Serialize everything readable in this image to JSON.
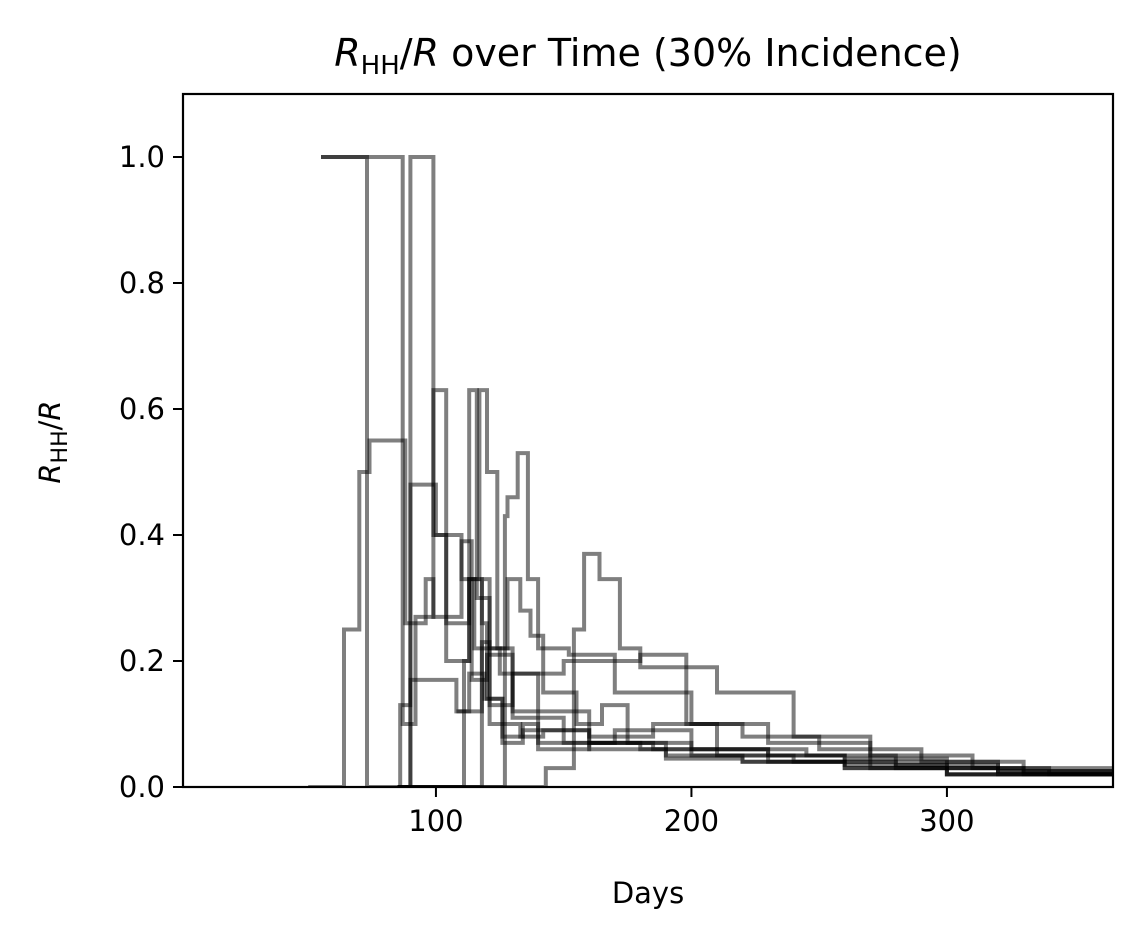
{
  "chart_data": {
    "type": "line",
    "title_parts": {
      "sym": "R",
      "sub": "HH",
      "slash": "/",
      "sym2": "R",
      "rest": " over Time (30% Incidence)"
    },
    "xlabel": "Days",
    "ylabel_parts": {
      "sym": "R",
      "sub": "HH",
      "slash": "/",
      "sym2": "R"
    },
    "xlim": [
      1,
      365
    ],
    "ylim": [
      0,
      1.1
    ],
    "x_ticks": [
      100,
      200,
      300
    ],
    "x_tick_labels": [
      "100",
      "200",
      "300"
    ],
    "y_ticks": [
      0,
      0.2,
      0.4,
      0.6,
      0.8,
      1.0
    ],
    "y_tick_labels": [
      "0.0",
      "0.2",
      "0.4",
      "0.6",
      "0.8",
      "1.0"
    ],
    "grid": false,
    "legend": "none",
    "line_color": "#000000",
    "line_opacity": 0.5,
    "series": [
      {
        "x": [
          50,
          64,
          64,
          70,
          70,
          74,
          74,
          88,
          88,
          96,
          96,
          99,
          99,
          110,
          110,
          114,
          114,
          120,
          120,
          130,
          130,
          150,
          150,
          170,
          170,
          200,
          200,
          230,
          230,
          260,
          260,
          300,
          300,
          340,
          340,
          365
        ],
        "y": [
          0,
          0,
          0.25,
          0.25,
          0.5,
          0.5,
          0.55,
          0.55,
          0.26,
          0.26,
          0.33,
          0.33,
          0.27,
          0.27,
          0.39,
          0.39,
          0.17,
          0.17,
          0.21,
          0.21,
          0.11,
          0.11,
          0.07,
          0.07,
          0.09,
          0.09,
          0.06,
          0.06,
          0.05,
          0.05,
          0.045,
          0.045,
          0.03,
          0.03,
          0.02,
          0.02
        ]
      },
      {
        "x": [
          55,
          73,
          73,
          86,
          86,
          90,
          90,
          100,
          100,
          110,
          110,
          115,
          115,
          125,
          125,
          140,
          140,
          160,
          160,
          185,
          185,
          210,
          210,
          245,
          245,
          280,
          280,
          320,
          320,
          365
        ],
        "y": [
          1.0,
          1.0,
          0.0,
          0.0,
          0.13,
          0.13,
          0.48,
          0.48,
          0.4,
          0.4,
          0.33,
          0.33,
          0.22,
          0.22,
          0.18,
          0.18,
          0.12,
          0.12,
          0.08,
          0.08,
          0.1,
          0.1,
          0.06,
          0.06,
          0.05,
          0.05,
          0.035,
          0.035,
          0.025,
          0.025
        ]
      },
      {
        "x": [
          55,
          87,
          87,
          92,
          92,
          99,
          99,
          104,
          104,
          113,
          113,
          116,
          116,
          121,
          121,
          133,
          133,
          142,
          142,
          160,
          160,
          180,
          180,
          200,
          200,
          230,
          230,
          270,
          270,
          320,
          320,
          365
        ],
        "y": [
          1.0,
          1.0,
          0.1,
          0.1,
          0.27,
          0.27,
          0.63,
          0.63,
          0.2,
          0.2,
          0.63,
          0.63,
          0.3,
          0.3,
          0.1,
          0.1,
          0.08,
          0.08,
          0.09,
          0.09,
          0.07,
          0.07,
          0.06,
          0.06,
          0.05,
          0.05,
          0.04,
          0.04,
          0.03,
          0.03,
          0.02,
          0.02
        ]
      },
      {
        "x": [
          88,
          90,
          90,
          99,
          99,
          104,
          104,
          113,
          113,
          117,
          117,
          120,
          120,
          124,
          124,
          130,
          130,
          140,
          140,
          160,
          160,
          185,
          185,
          210,
          210,
          240,
          240,
          280,
          280,
          330,
          330,
          365
        ],
        "y": [
          0.0,
          0.0,
          1.0,
          1.0,
          0.4,
          0.4,
          0.26,
          0.26,
          0.33,
          0.33,
          0.63,
          0.63,
          0.5,
          0.5,
          0.22,
          0.22,
          0.12,
          0.12,
          0.09,
          0.09,
          0.07,
          0.07,
          0.06,
          0.06,
          0.05,
          0.05,
          0.04,
          0.04,
          0.03,
          0.03,
          0.02,
          0.02
        ]
      },
      {
        "x": [
          85,
          90,
          90,
          100,
          100,
          108,
          108,
          113,
          113,
          119,
          119,
          126,
          126,
          134,
          134,
          140,
          140,
          160,
          160,
          190,
          190,
          220,
          220,
          260,
          260,
          300,
          300,
          365
        ],
        "y": [
          0.0,
          0.0,
          0.17,
          0.17,
          0.17,
          0.17,
          0.12,
          0.12,
          0.18,
          0.18,
          0.14,
          0.14,
          0.07,
          0.07,
          0.09,
          0.09,
          0.06,
          0.06,
          0.07,
          0.07,
          0.05,
          0.05,
          0.04,
          0.04,
          0.03,
          0.03,
          0.02,
          0.02
        ]
      },
      {
        "x": [
          85,
          111,
          111,
          113,
          113,
          118,
          118,
          120,
          120,
          126,
          126,
          134,
          134,
          140,
          140,
          160,
          160,
          190,
          190,
          220,
          220,
          260,
          260,
          300,
          300,
          365
        ],
        "y": [
          0.0,
          0.0,
          0.2,
          0.2,
          0.33,
          0.33,
          0.26,
          0.26,
          0.14,
          0.14,
          0.08,
          0.08,
          0.1,
          0.1,
          0.07,
          0.07,
          0.06,
          0.06,
          0.045,
          0.045,
          0.04,
          0.04,
          0.03,
          0.03,
          0.02,
          0.02
        ]
      },
      {
        "x": [
          85,
          118,
          118,
          121,
          121,
          128,
          128,
          133,
          133,
          137,
          137,
          142,
          142,
          155,
          155,
          165,
          165,
          175,
          175,
          200,
          200,
          230,
          230,
          260,
          260,
          300,
          300,
          365
        ],
        "y": [
          0.0,
          0.0,
          0.33,
          0.33,
          0.22,
          0.22,
          0.33,
          0.33,
          0.28,
          0.28,
          0.24,
          0.24,
          0.15,
          0.15,
          0.1,
          0.1,
          0.13,
          0.13,
          0.07,
          0.07,
          0.06,
          0.06,
          0.05,
          0.05,
          0.035,
          0.035,
          0.02,
          0.02
        ]
      },
      {
        "x": [
          85,
          127,
          127,
          128,
          128,
          132,
          132,
          136,
          136,
          140,
          140,
          152,
          152,
          170,
          170,
          200,
          200,
          230,
          230,
          270,
          270,
          320,
          320,
          365
        ],
        "y": [
          0.0,
          0.0,
          0.43,
          0.43,
          0.46,
          0.46,
          0.53,
          0.53,
          0.33,
          0.33,
          0.22,
          0.22,
          0.21,
          0.21,
          0.15,
          0.15,
          0.1,
          0.1,
          0.07,
          0.07,
          0.04,
          0.04,
          0.025,
          0.025
        ]
      },
      {
        "x": [
          85,
          139,
          139,
          143,
          143,
          154,
          154,
          158,
          158,
          164,
          164,
          172,
          172,
          180,
          180,
          210,
          210,
          240,
          240,
          270,
          270,
          310,
          310,
          365
        ],
        "y": [
          0.0,
          0.0,
          0.0,
          0.0,
          0.03,
          0.03,
          0.25,
          0.25,
          0.37,
          0.37,
          0.33,
          0.33,
          0.22,
          0.22,
          0.19,
          0.19,
          0.15,
          0.15,
          0.08,
          0.08,
          0.05,
          0.05,
          0.03,
          0.03
        ]
      },
      {
        "x": [
          108,
          118,
          118,
          121,
          121,
          130,
          130,
          150,
          150,
          180,
          180,
          198,
          198,
          220,
          220,
          250,
          250,
          290,
          290,
          330,
          330,
          365
        ],
        "y": [
          0.12,
          0.12,
          0.23,
          0.23,
          0.13,
          0.13,
          0.18,
          0.18,
          0.2,
          0.2,
          0.21,
          0.21,
          0.1,
          0.1,
          0.08,
          0.08,
          0.06,
          0.06,
          0.04,
          0.04,
          0.025,
          0.025
        ]
      }
    ]
  }
}
